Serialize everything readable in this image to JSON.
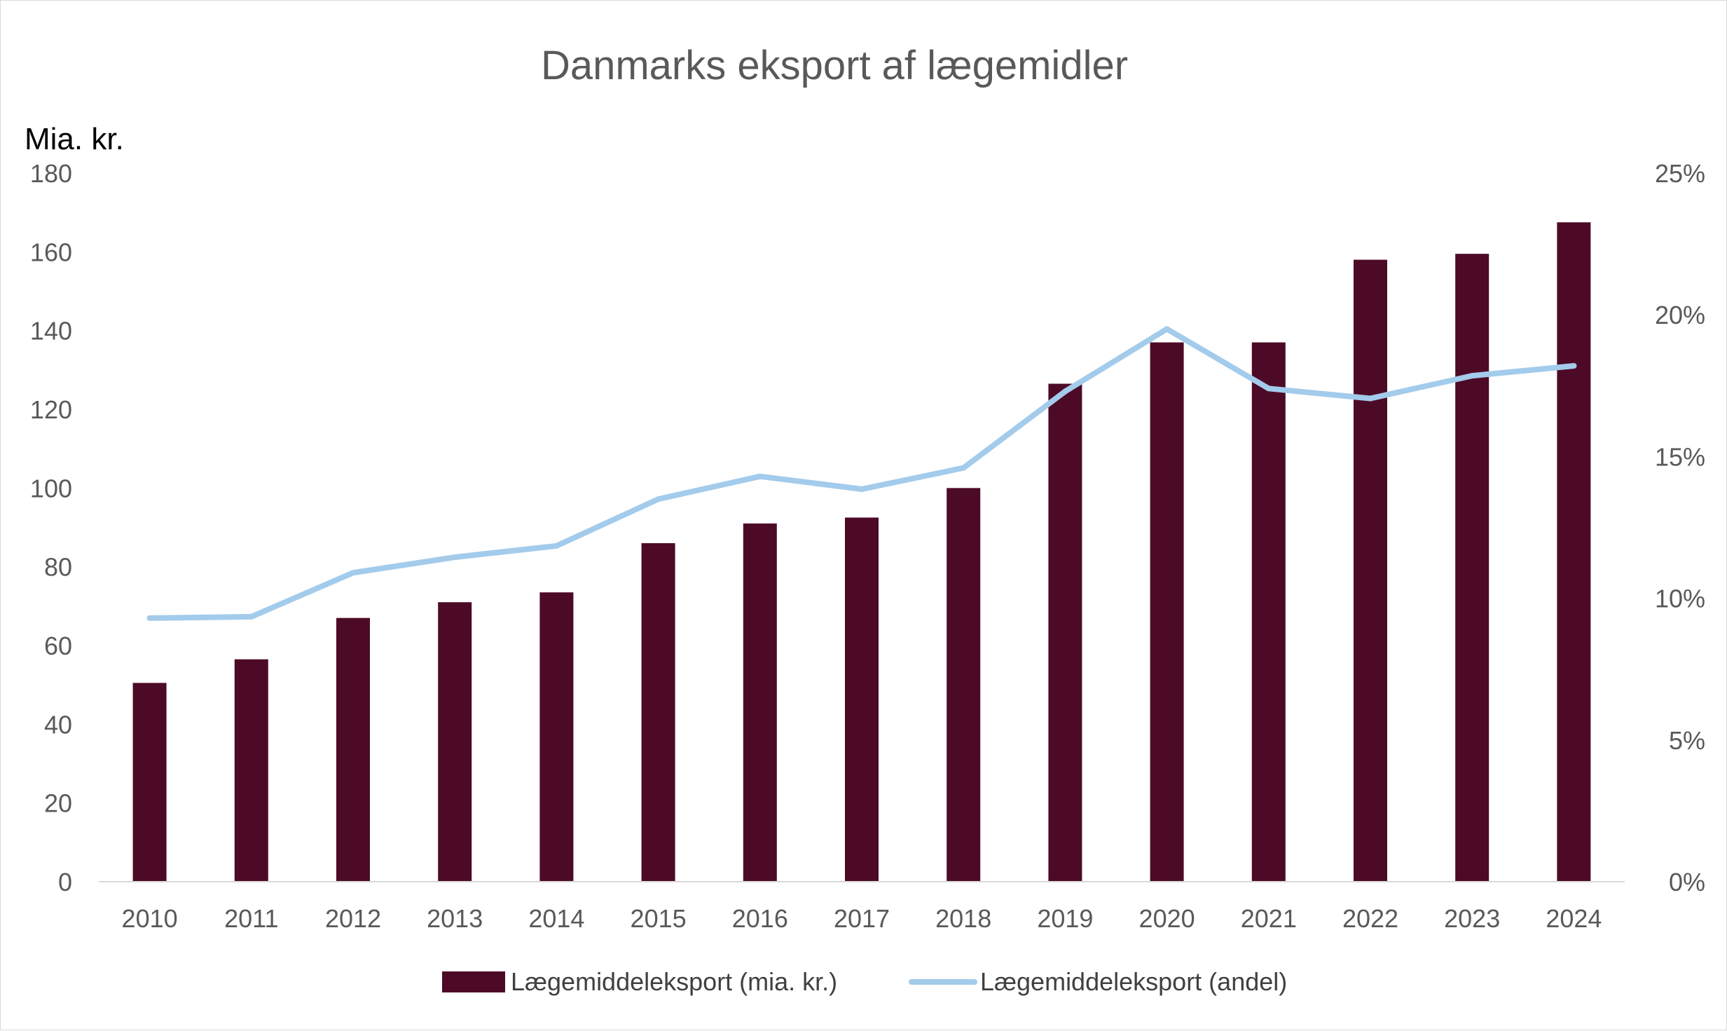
{
  "chart_data": {
    "type": "bar",
    "title": "Danmarks eksport af lægemidler",
    "ylabel": "Mia. kr.",
    "ylim": [
      0,
      180
    ],
    "y2lim": [
      0,
      25
    ],
    "y_ticks": [
      "0",
      "20",
      "40",
      "60",
      "80",
      "100",
      "120",
      "140",
      "160",
      "180"
    ],
    "y2_ticks": [
      "0%",
      "5%",
      "10%",
      "15%",
      "20%",
      "25%"
    ],
    "categories": [
      "2010",
      "2011",
      "2012",
      "2013",
      "2014",
      "2015",
      "2016",
      "2017",
      "2018",
      "2019",
      "2020",
      "2021",
      "2022",
      "2023",
      "2024"
    ],
    "series": [
      {
        "name": "Lægemiddeleksport (mia. kr.)",
        "type": "bar",
        "axis": "left",
        "color": "#4d0a26",
        "values": [
          50.5,
          56.5,
          67,
          71,
          73.5,
          86,
          91,
          92.5,
          100,
          126.5,
          137,
          137,
          158,
          159.5,
          167.5
        ]
      },
      {
        "name": "Lægemiddeleksport (andel)",
        "type": "line",
        "axis": "right",
        "unit": "%",
        "color": "#a3cbeb",
        "values": [
          9.3,
          9.35,
          10.9,
          11.45,
          11.85,
          13.5,
          14.3,
          13.85,
          14.6,
          17.3,
          19.5,
          17.4,
          17.05,
          17.85,
          18.2
        ]
      }
    ],
    "legend_position": "bottom",
    "grid": false
  }
}
